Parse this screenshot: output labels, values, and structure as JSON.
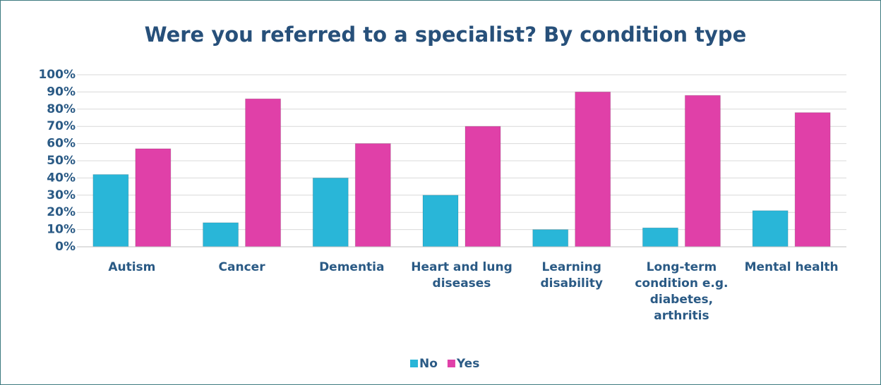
{
  "chart_data": {
    "type": "bar",
    "title": "Were you referred to a specialist? By condition type",
    "categories": [
      "Autism",
      "Cancer",
      "Dementia",
      "Heart and lung diseases",
      "Learning disability",
      "Long-term condition e.g. diabetes, arthritis",
      "Mental health"
    ],
    "series": [
      {
        "name": "No",
        "color": "#29b6d8",
        "values": [
          42,
          14,
          40,
          30,
          10,
          11,
          21
        ]
      },
      {
        "name": "Yes",
        "color": "#e040a8",
        "values": [
          57,
          86,
          60,
          70,
          90,
          88,
          78
        ]
      }
    ],
    "ylim": [
      0,
      100
    ],
    "yticks": [
      {
        "value": 0,
        "label": "0%"
      },
      {
        "value": 10,
        "label": "10%"
      },
      {
        "value": 20,
        "label": "20%"
      },
      {
        "value": 30,
        "label": "30%"
      },
      {
        "value": 40,
        "label": "40%"
      },
      {
        "value": 50,
        "label": "50%"
      },
      {
        "value": 60,
        "label": "60%"
      },
      {
        "value": 70,
        "label": "70%"
      },
      {
        "value": 80,
        "label": "80%"
      },
      {
        "value": 90,
        "label": "90%"
      },
      {
        "value": 100,
        "label": "100%"
      }
    ],
    "grid": true,
    "legend": "bottom"
  }
}
